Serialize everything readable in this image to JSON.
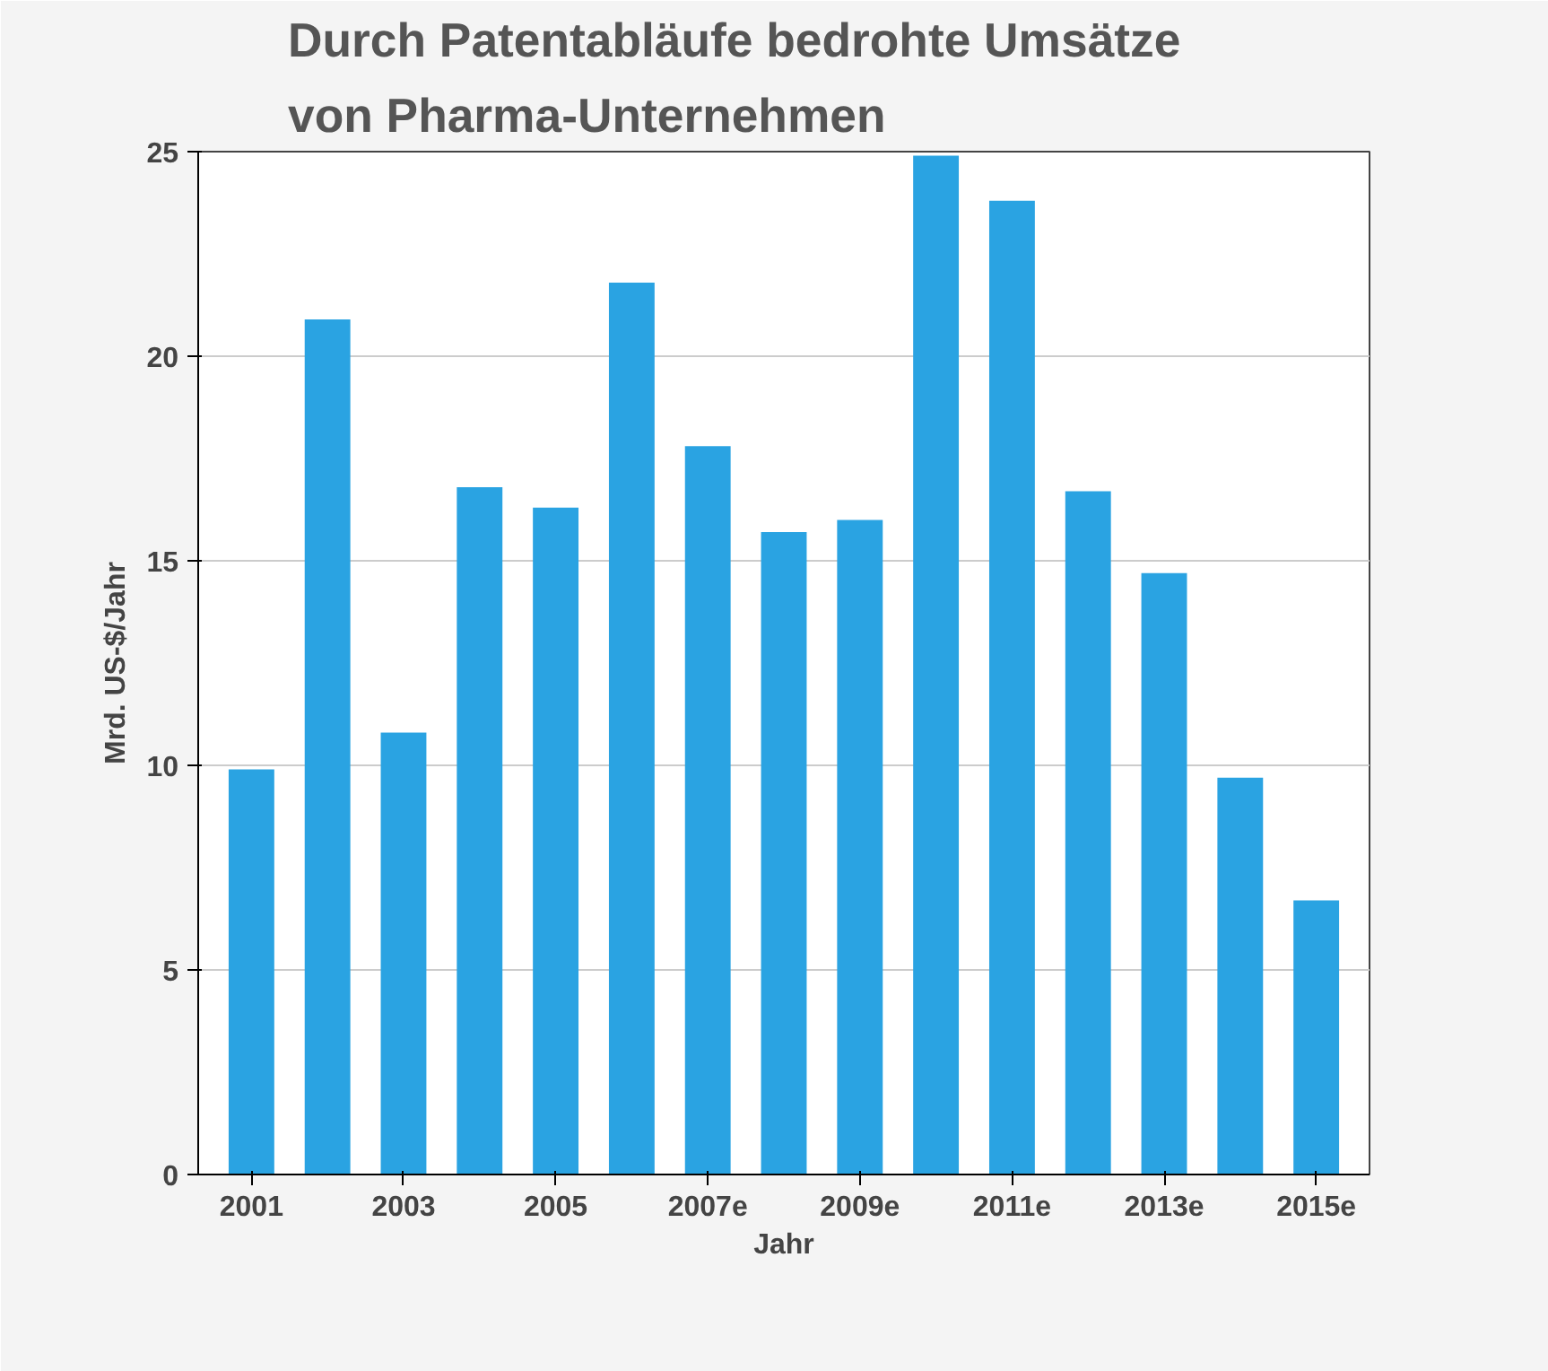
{
  "chart_data": {
    "type": "bar",
    "title": "Durch Patentabläufe bedrohte Umsätze",
    "subtitle": "von Pharma-Unternehmen",
    "xlabel": "Jahr",
    "ylabel": "Mrd. US-$/Jahr",
    "categories": [
      "2001",
      null,
      "2003",
      null,
      "2005",
      null,
      "2007e",
      null,
      "2009e",
      null,
      "2011e",
      null,
      "2013e",
      null,
      "2015e"
    ],
    "values": [
      9.9,
      20.9,
      10.8,
      16.8,
      16.3,
      21.8,
      17.8,
      15.7,
      16.0,
      24.9,
      23.8,
      16.7,
      14.7,
      9.7,
      6.7
    ],
    "color": "#2aa3e2",
    "ylim": [
      0,
      25
    ],
    "yticks": [
      0,
      5,
      10,
      15,
      20,
      25
    ],
    "grid": "y"
  }
}
